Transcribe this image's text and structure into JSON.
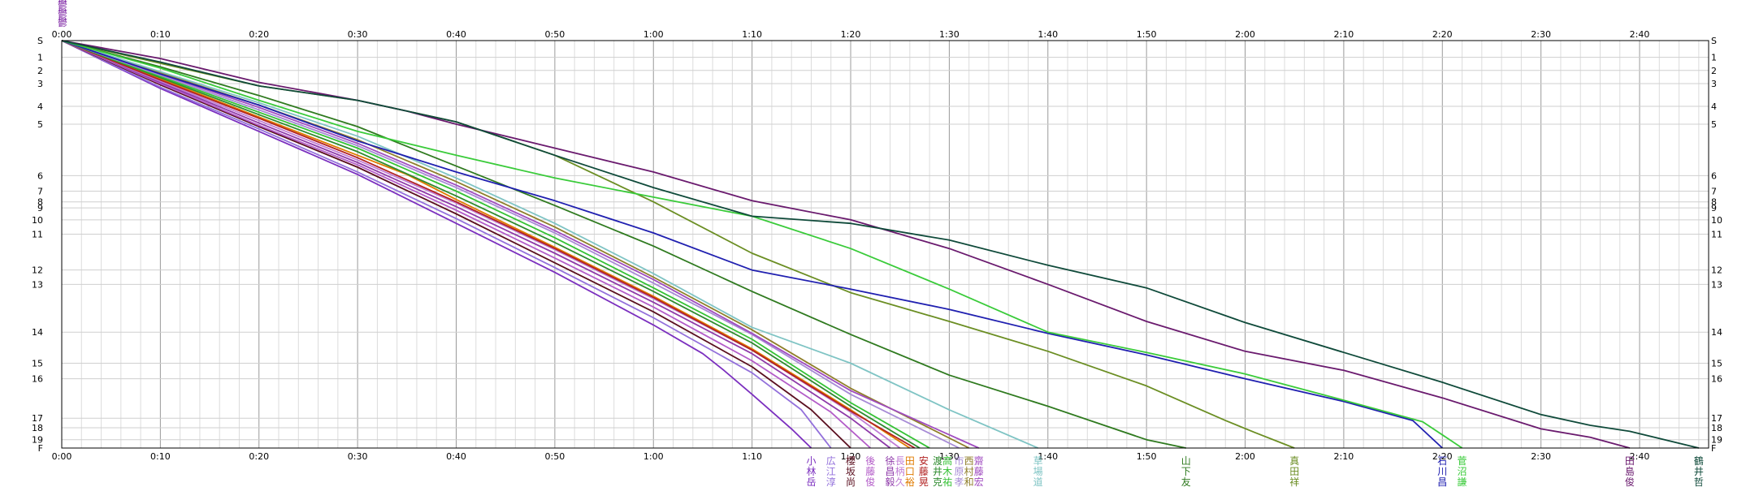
{
  "chart_data": {
    "type": "line",
    "title": "",
    "xlabel": "",
    "ylabel": "",
    "grid": true,
    "x_unit": "minutes",
    "xlim": [
      0,
      167
    ],
    "x_ticks": [
      {
        "value": 0,
        "label": "0:00"
      },
      {
        "value": 10,
        "label": "0:10"
      },
      {
        "value": 20,
        "label": "0:20"
      },
      {
        "value": 30,
        "label": "0:30"
      },
      {
        "value": 40,
        "label": "0:40"
      },
      {
        "value": 50,
        "label": "0:50"
      },
      {
        "value": 60,
        "label": "1:00"
      },
      {
        "value": 70,
        "label": "1:10"
      },
      {
        "value": 80,
        "label": "1:20"
      },
      {
        "value": 90,
        "label": "1:30"
      },
      {
        "value": 100,
        "label": "1:40"
      },
      {
        "value": 110,
        "label": "1:50"
      },
      {
        "value": 120,
        "label": "2:00"
      },
      {
        "value": 130,
        "label": "2:10"
      },
      {
        "value": 140,
        "label": "2:20"
      },
      {
        "value": 150,
        "label": "2:30"
      },
      {
        "value": 160,
        "label": "2:40"
      }
    ],
    "y_unit": "cumulative distance",
    "ylim": [
      0,
      34.1
    ],
    "checkpoints": [
      {
        "label": "S",
        "pos": 0
      },
      {
        "label": "1",
        "pos": 1.4
      },
      {
        "label": "2",
        "pos": 2.5
      },
      {
        "label": "3",
        "pos": 3.6
      },
      {
        "label": "4",
        "pos": 5.5
      },
      {
        "label": "5",
        "pos": 7.0
      },
      {
        "label": "6",
        "pos": 11.3
      },
      {
        "label": "7",
        "pos": 12.6
      },
      {
        "label": "8",
        "pos": 13.5
      },
      {
        "label": "9",
        "pos": 14.0
      },
      {
        "label": "10",
        "pos": 15.0
      },
      {
        "label": "11",
        "pos": 16.2
      },
      {
        "label": "12",
        "pos": 19.2
      },
      {
        "label": "13",
        "pos": 20.4
      },
      {
        "label": "14",
        "pos": 24.4
      },
      {
        "label": "15",
        "pos": 27.0
      },
      {
        "label": "16",
        "pos": 28.3
      },
      {
        "label": "17",
        "pos": 31.6
      },
      {
        "label": "18",
        "pos": 32.4
      },
      {
        "label": "19",
        "pos": 33.4
      },
      {
        "label": "F",
        "pos": 34.1
      }
    ],
    "start_marker": {
      "text": "鬱鬱鬱",
      "color": "#7a1fa2"
    },
    "series": [
      {
        "name": "小林岳",
        "color": "#7b2fbf",
        "points": [
          [
            0,
            0
          ],
          [
            10,
            4.0
          ],
          [
            20,
            7.6
          ],
          [
            30,
            11.2
          ],
          [
            40,
            15.3
          ],
          [
            50,
            19.4
          ],
          [
            60,
            23.8
          ],
          [
            65,
            26.2
          ],
          [
            67,
            27.5
          ],
          [
            70,
            29.6
          ],
          [
            74,
            32.5
          ],
          [
            76,
            34.1
          ]
        ]
      },
      {
        "name": "広江淳",
        "color": "#9370db",
        "points": [
          [
            0,
            0
          ],
          [
            10,
            3.9
          ],
          [
            20,
            7.4
          ],
          [
            30,
            11.0
          ],
          [
            40,
            14.9
          ],
          [
            50,
            19.0
          ],
          [
            60,
            23.2
          ],
          [
            70,
            27.8
          ],
          [
            75,
            30.9
          ],
          [
            78,
            34.1
          ]
        ]
      },
      {
        "name": "櫻坂尚",
        "color": "#5a0f1f",
        "points": [
          [
            0,
            0
          ],
          [
            10,
            3.7
          ],
          [
            20,
            7.2
          ],
          [
            30,
            10.6
          ],
          [
            40,
            14.5
          ],
          [
            50,
            18.6
          ],
          [
            60,
            22.7
          ],
          [
            70,
            27.3
          ],
          [
            76,
            30.9
          ],
          [
            80,
            34.1
          ]
        ]
      },
      {
        "name": "後藤俊",
        "color": "#b35cc8",
        "points": [
          [
            0,
            0
          ],
          [
            10,
            3.6
          ],
          [
            20,
            7.1
          ],
          [
            30,
            10.4
          ],
          [
            40,
            14.2
          ],
          [
            50,
            18.2
          ],
          [
            60,
            22.3
          ],
          [
            70,
            26.8
          ],
          [
            78,
            31.1
          ],
          [
            82,
            34.1
          ]
        ]
      },
      {
        "name": "徐昌毅",
        "color": "#8e3aa9",
        "points": [
          [
            0,
            0
          ],
          [
            10,
            3.5
          ],
          [
            20,
            6.9
          ],
          [
            30,
            10.2
          ],
          [
            40,
            13.9
          ],
          [
            50,
            17.8
          ],
          [
            60,
            21.9
          ],
          [
            70,
            26.2
          ],
          [
            80,
            31.6
          ],
          [
            84,
            34.1
          ]
        ]
      },
      {
        "name": "長柄久",
        "color": "#c07dd6",
        "points": [
          [
            0,
            0
          ],
          [
            10,
            3.4
          ],
          [
            20,
            6.7
          ],
          [
            30,
            10.0
          ],
          [
            40,
            13.6
          ],
          [
            50,
            17.5
          ],
          [
            60,
            21.6
          ],
          [
            70,
            25.9
          ],
          [
            80,
            31.1
          ],
          [
            85,
            34.1
          ]
        ]
      },
      {
        "name": "田口裕",
        "color": "#e07b00",
        "points": [
          [
            0,
            0
          ],
          [
            10,
            3.2
          ],
          [
            20,
            6.4
          ],
          [
            30,
            9.6
          ],
          [
            35,
            11.2
          ],
          [
            40,
            13.3
          ],
          [
            50,
            17.3
          ],
          [
            60,
            21.4
          ],
          [
            70,
            25.8
          ],
          [
            80,
            30.9
          ],
          [
            86,
            34.1
          ]
        ]
      },
      {
        "name": "安藤晃",
        "color": "#b22222",
        "points": [
          [
            0,
            0
          ],
          [
            10,
            3.3
          ],
          [
            20,
            6.5
          ],
          [
            30,
            9.8
          ],
          [
            40,
            13.5
          ],
          [
            50,
            17.4
          ],
          [
            60,
            21.5
          ],
          [
            70,
            25.9
          ],
          [
            80,
            31.0
          ],
          [
            86.5,
            34.1
          ]
        ]
      },
      {
        "name": "渡井克",
        "color": "#2e8b2e",
        "points": [
          [
            0,
            0
          ],
          [
            10,
            3.1
          ],
          [
            20,
            6.2
          ],
          [
            30,
            9.3
          ],
          [
            40,
            13.0
          ],
          [
            50,
            16.9
          ],
          [
            60,
            21.0
          ],
          [
            70,
            25.3
          ],
          [
            80,
            30.6
          ],
          [
            87,
            34.1
          ]
        ]
      },
      {
        "name": "高木祐",
        "color": "#35c235",
        "points": [
          [
            0,
            0
          ],
          [
            10,
            3.0
          ],
          [
            20,
            6.0
          ],
          [
            30,
            9.0
          ],
          [
            40,
            12.6
          ],
          [
            50,
            16.5
          ],
          [
            60,
            20.7
          ],
          [
            70,
            25.0
          ],
          [
            80,
            30.3
          ],
          [
            88,
            34.1
          ]
        ]
      },
      {
        "name": "市原孝",
        "color": "#a78bd6",
        "points": [
          [
            0,
            0
          ],
          [
            10,
            2.9
          ],
          [
            20,
            5.8
          ],
          [
            30,
            8.8
          ],
          [
            40,
            12.3
          ],
          [
            50,
            16.1
          ],
          [
            60,
            20.3
          ],
          [
            70,
            24.6
          ],
          [
            80,
            29.6
          ],
          [
            91,
            34.1
          ]
        ]
      },
      {
        "name": "西村和",
        "color": "#8f7e2a",
        "points": [
          [
            0,
            0
          ],
          [
            10,
            2.7
          ],
          [
            20,
            5.4
          ],
          [
            30,
            8.3
          ],
          [
            40,
            11.8
          ],
          [
            50,
            15.6
          ],
          [
            60,
            19.8
          ],
          [
            70,
            24.2
          ],
          [
            80,
            29.1
          ],
          [
            92,
            34.1
          ]
        ]
      },
      {
        "name": "齋藤宏",
        "color": "#a04cc0",
        "points": [
          [
            0,
            0
          ],
          [
            10,
            2.8
          ],
          [
            20,
            5.6
          ],
          [
            30,
            8.6
          ],
          [
            40,
            12.1
          ],
          [
            50,
            15.9
          ],
          [
            60,
            20.0
          ],
          [
            70,
            24.5
          ],
          [
            80,
            29.3
          ],
          [
            93,
            34.1
          ]
        ]
      },
      {
        "name": "草場道",
        "color": "#7fc4c4",
        "points": [
          [
            0,
            0
          ],
          [
            10,
            2.6
          ],
          [
            20,
            5.2
          ],
          [
            30,
            8.0
          ],
          [
            40,
            11.5
          ],
          [
            50,
            15.3
          ],
          [
            60,
            19.5
          ],
          [
            70,
            24.0
          ],
          [
            80,
            27.0
          ],
          [
            90,
            30.9
          ],
          [
            99,
            34.1
          ]
        ]
      },
      {
        "name": "山下友",
        "color": "#2f7a1f",
        "points": [
          [
            0,
            0
          ],
          [
            10,
            2.2
          ],
          [
            20,
            4.6
          ],
          [
            30,
            7.2
          ],
          [
            40,
            10.5
          ],
          [
            50,
            13.8
          ],
          [
            60,
            17.2
          ],
          [
            70,
            21.0
          ],
          [
            80,
            24.6
          ],
          [
            90,
            28.0
          ],
          [
            100,
            30.6
          ],
          [
            110,
            33.4
          ],
          [
            114,
            34.1
          ]
        ]
      },
      {
        "name": "真田祥",
        "color": "#6b8e23",
        "points": [
          [
            0,
            0
          ],
          [
            10,
            1.9
          ],
          [
            20,
            3.8
          ],
          [
            30,
            5.0
          ],
          [
            40,
            6.8
          ],
          [
            50,
            9.6
          ],
          [
            60,
            13.5
          ],
          [
            70,
            17.8
          ],
          [
            80,
            21.1
          ],
          [
            90,
            23.5
          ],
          [
            100,
            26.0
          ],
          [
            110,
            28.9
          ],
          [
            118,
            31.8
          ],
          [
            121,
            32.8
          ],
          [
            125,
            34.1
          ]
        ]
      },
      {
        "name": "石川昌",
        "color": "#2020b0",
        "points": [
          [
            0,
            0
          ],
          [
            10,
            2.8
          ],
          [
            20,
            5.4
          ],
          [
            30,
            8.4
          ],
          [
            40,
            11.0
          ],
          [
            50,
            13.4
          ],
          [
            60,
            16.1
          ],
          [
            70,
            19.2
          ],
          [
            80,
            20.8
          ],
          [
            90,
            22.5
          ],
          [
            100,
            24.5
          ],
          [
            110,
            26.3
          ],
          [
            120,
            28.3
          ],
          [
            130,
            30.2
          ],
          [
            137,
            31.8
          ],
          [
            140,
            34.1
          ]
        ]
      },
      {
        "name": "菅沼謙",
        "color": "#3acb3a",
        "points": [
          [
            0,
            0
          ],
          [
            10,
            2.3
          ],
          [
            20,
            5.0
          ],
          [
            30,
            7.6
          ],
          [
            40,
            9.6
          ],
          [
            50,
            11.5
          ],
          [
            60,
            13.1
          ],
          [
            70,
            14.7
          ],
          [
            80,
            17.4
          ],
          [
            90,
            20.8
          ],
          [
            100,
            24.4
          ],
          [
            110,
            26.1
          ],
          [
            120,
            27.9
          ],
          [
            130,
            30.1
          ],
          [
            138,
            31.9
          ],
          [
            142,
            34.1
          ]
        ]
      },
      {
        "name": "田島俊",
        "color": "#6a1a6e",
        "points": [
          [
            0,
            0
          ],
          [
            10,
            1.5
          ],
          [
            20,
            3.5
          ],
          [
            30,
            5.0
          ],
          [
            35,
            5.9
          ],
          [
            40,
            7.0
          ],
          [
            50,
            9.0
          ],
          [
            60,
            11.0
          ],
          [
            70,
            13.4
          ],
          [
            80,
            15.0
          ],
          [
            90,
            17.4
          ],
          [
            100,
            20.4
          ],
          [
            110,
            23.5
          ],
          [
            120,
            26.0
          ],
          [
            130,
            27.6
          ],
          [
            140,
            29.9
          ],
          [
            150,
            32.5
          ],
          [
            155,
            33.2
          ],
          [
            159,
            34.1
          ]
        ]
      },
      {
        "name": "鶴井哲",
        "color": "#0f4a3a",
        "points": [
          [
            0,
            0
          ],
          [
            10,
            1.8
          ],
          [
            20,
            3.8
          ],
          [
            30,
            5.0
          ],
          [
            40,
            6.8
          ],
          [
            50,
            9.6
          ],
          [
            60,
            12.3
          ],
          [
            70,
            14.7
          ],
          [
            80,
            15.3
          ],
          [
            90,
            16.7
          ],
          [
            100,
            18.8
          ],
          [
            110,
            20.7
          ],
          [
            120,
            23.6
          ],
          [
            130,
            26.1
          ],
          [
            140,
            28.6
          ],
          [
            150,
            31.3
          ],
          [
            155,
            32.2
          ],
          [
            159,
            32.7
          ],
          [
            166,
            34.1
          ]
        ]
      }
    ]
  }
}
